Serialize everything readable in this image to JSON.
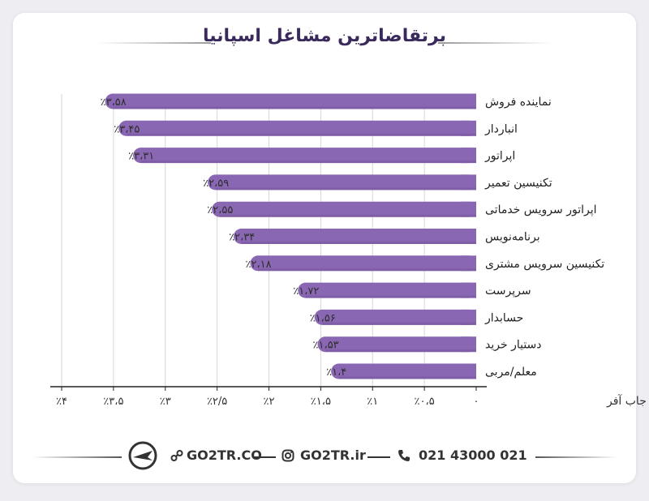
{
  "title": "پرتقاضاترین مشاغل اسپانیا",
  "colors": {
    "bar": "#8a67b3",
    "bar_dark": "#6b4d93",
    "grid": "#d6d6d6",
    "axis": "#222222",
    "title": "#3a2a5c"
  },
  "chart_data": {
    "type": "bar",
    "orientation": "horizontal",
    "title": "پرتقاضاترین مشاغل اسپانیا",
    "xlabel": "امکان دریافت جاب آفر",
    "xlim": [
      0,
      4
    ],
    "x_direction": "right-to-left",
    "grid": true,
    "xticks": [
      0,
      0.5,
      1,
      1.5,
      2,
      2.5,
      3,
      3.5,
      4
    ],
    "xtick_labels": [
      "۰",
      "٪۰،۵",
      "٪۱",
      "٪۱،۵",
      "٪۲",
      "٪۲/۵",
      "٪۳",
      "٪۳،۵",
      "٪۴"
    ],
    "categories": [
      "نماینده فروش",
      "انباردار",
      "اپراتور",
      "تکنیسین تعمیر",
      "اپراتور سرویس خدماتی",
      "برنامه‌نویس",
      "تکنیسین سرویس مشتری",
      "سرپرست",
      "حسابدار",
      "دستیار خرید",
      "معلم/مربی"
    ],
    "values": [
      3.58,
      3.45,
      3.31,
      2.59,
      2.55,
      2.34,
      2.18,
      1.72,
      1.56,
      1.53,
      1.4
    ],
    "value_labels": [
      "٪۳،۵۸",
      "٪۳،۴۵",
      "٪۳،۳۱",
      "٪۲،۵۹",
      "٪۲،۵۵",
      "٪۲،۳۴",
      "٪۲،۱۸",
      "٪۱،۷۲",
      "٪۱،۵۶",
      "٪۱،۵۳",
      "٪۱،۴"
    ]
  },
  "footer": {
    "site": "GO2TR.CO",
    "instagram": "GO2TR.ir",
    "phone": "021 43000 021",
    "icons": [
      "logo-plane-icon",
      "link-icon",
      "instagram-icon",
      "phone-icon"
    ]
  }
}
